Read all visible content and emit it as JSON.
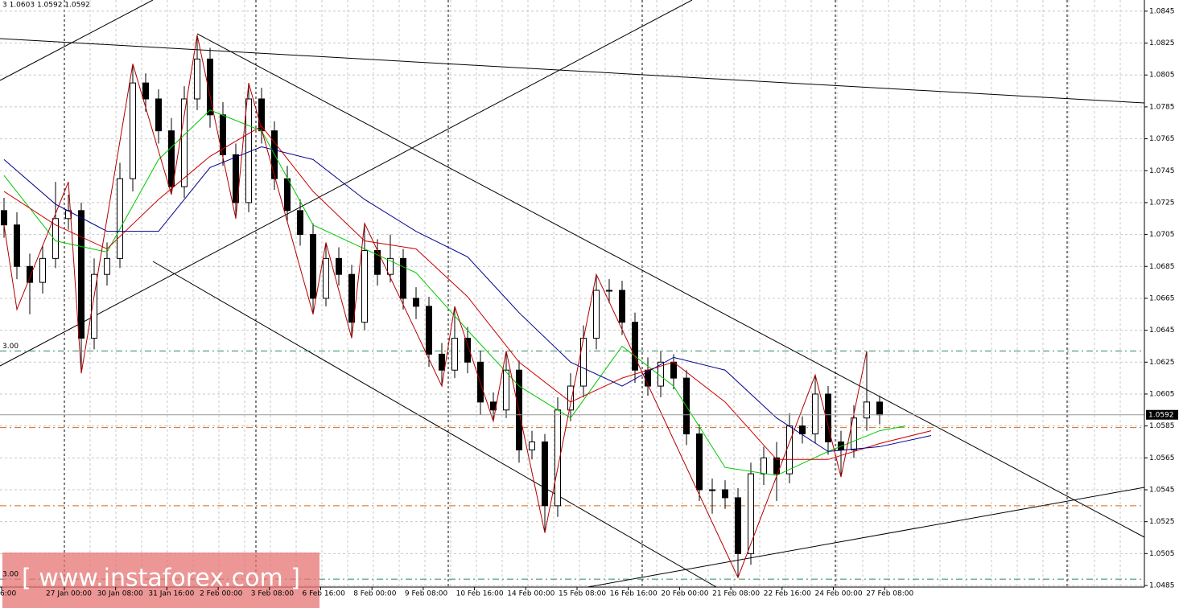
{
  "chart_data": {
    "type": "candlestick",
    "header": "3 1.0603 1.0592 1.0592",
    "watermark": "[ www.instaforex.com ]",
    "ylim": [
      1.0484,
      1.0852
    ],
    "yticks": [
      1.0845,
      1.0825,
      1.0805,
      1.0785,
      1.0765,
      1.0745,
      1.0725,
      1.0705,
      1.0685,
      1.0665,
      1.0645,
      1.0625,
      1.0605,
      1.0585,
      1.0565,
      1.0545,
      1.0525,
      1.0505,
      1.0485
    ],
    "grid": true,
    "x_labels": [
      "6:00",
      "27 Jan 00:00",
      "30 Jan 08:00",
      "31 Jan 16:00",
      "2 Feb 00:00",
      "3 Feb 08:00",
      "6 Feb 16:00",
      "8 Feb 00:00",
      "9 Feb 08:00",
      "10 Feb 16:00",
      "14 Feb 00:00",
      "15 Feb 08:00",
      "16 Feb 16:00",
      "20 Feb 00:00",
      "21 Feb 08:00",
      "22 Feb 16:00",
      "24 Feb 00:00",
      "27 Feb 08:00"
    ],
    "open": [
      1.072,
      1.0711,
      1.0685,
      1.0675,
      1.069,
      1.0715,
      1.072,
      1.064,
      1.068,
      1.069,
      1.074,
      1.08,
      1.079,
      1.077,
      1.0735,
      1.079,
      1.0815,
      1.078,
      1.0755,
      1.0725,
      1.079,
      1.077,
      1.074,
      1.072,
      1.0705,
      1.0665,
      1.069,
      1.068,
      1.065,
      1.0695,
      1.068,
      1.069,
      1.0665,
      1.066,
      1.063,
      1.062,
      1.064,
      1.0625,
      1.06,
      1.0595,
      1.062,
      1.057,
      1.0575,
      1.0535,
      1.0595,
      1.061,
      1.064,
      1.067,
      1.067,
      1.065,
      1.062,
      1.061,
      1.0625,
      1.0615,
      1.058,
      1.0545,
      1.0545,
      1.054,
      1.0505,
      1.0555,
      1.0565,
      1.0555,
      1.0585,
      1.058,
      1.0605,
      1.0575,
      1.057,
      1.059,
      1.06
    ],
    "high": [
      1.0728,
      1.0719,
      1.0693,
      1.0698,
      1.0738,
      1.073,
      1.0725,
      1.069,
      1.07,
      1.075,
      1.0812,
      1.0806,
      1.0796,
      1.0778,
      1.0798,
      1.083,
      1.0822,
      1.0788,
      1.0762,
      1.08,
      1.0797,
      1.0776,
      1.0748,
      1.0727,
      1.0712,
      1.07,
      1.0697,
      1.0686,
      1.0712,
      1.0702,
      1.0705,
      1.0696,
      1.0672,
      1.0666,
      1.0637,
      1.066,
      1.0647,
      1.0632,
      1.0606,
      1.0632,
      1.0626,
      1.0582,
      1.058,
      1.0603,
      1.0618,
      1.0648,
      1.068,
      1.0677,
      1.0676,
      1.0656,
      1.0628,
      1.0632,
      1.063,
      1.062,
      1.0586,
      1.0552,
      1.0551,
      1.0546,
      1.0562,
      1.0572,
      1.0575,
      1.0593,
      1.0591,
      1.0617,
      1.061,
      1.0582,
      1.0598,
      1.0632,
      1.0604
    ],
    "low": [
      1.0703,
      1.0677,
      1.0655,
      1.0668,
      1.0684,
      1.0708,
      1.0618,
      1.0633,
      1.0673,
      1.0684,
      1.0732,
      1.0782,
      1.0762,
      1.073,
      1.0728,
      1.0783,
      1.0772,
      1.0748,
      1.0715,
      1.0719,
      1.0762,
      1.0733,
      1.0713,
      1.0698,
      1.0655,
      1.066,
      1.0673,
      1.064,
      1.0645,
      1.0673,
      1.0675,
      1.0658,
      1.0652,
      1.0622,
      1.061,
      1.0615,
      1.0618,
      1.0592,
      1.0588,
      1.059,
      1.0562,
      1.0564,
      1.0518,
      1.0528,
      1.0588,
      1.0603,
      1.0633,
      1.0662,
      1.0642,
      1.0612,
      1.0604,
      1.0603,
      1.0608,
      1.0573,
      1.0538,
      1.053,
      1.0533,
      1.049,
      1.0498,
      1.0548,
      1.0538,
      1.0549,
      1.0574,
      1.0574,
      1.0567,
      1.0553,
      1.0565,
      1.0582,
      1.0586
    ],
    "close": [
      1.0711,
      1.0685,
      1.0675,
      1.069,
      1.0715,
      1.072,
      1.064,
      1.068,
      1.069,
      1.074,
      1.08,
      1.079,
      1.077,
      1.0735,
      1.079,
      1.0815,
      1.078,
      1.0755,
      1.0725,
      1.079,
      1.077,
      1.074,
      1.072,
      1.0705,
      1.0665,
      1.069,
      1.068,
      1.065,
      1.0695,
      1.068,
      1.069,
      1.0665,
      1.066,
      1.063,
      1.062,
      1.064,
      1.0625,
      1.06,
      1.0595,
      1.062,
      1.057,
      1.0575,
      1.0535,
      1.0595,
      1.061,
      1.064,
      1.067,
      1.067,
      1.065,
      1.062,
      1.061,
      1.0625,
      1.0615,
      1.058,
      1.0545,
      1.0545,
      1.054,
      1.0505,
      1.0555,
      1.0565,
      1.0555,
      1.0585,
      1.058,
      1.0605,
      1.0575,
      1.057,
      1.059,
      1.06,
      1.0592
    ],
    "lines": [
      {
        "color": "#00c800",
        "x": [
          0,
          4,
          8,
          12,
          16,
          20,
          24,
          28,
          32,
          36,
          40,
          44,
          48,
          52,
          56,
          60,
          64,
          68,
          70
        ],
        "values": [
          1.0742,
          1.0701,
          1.0694,
          1.0752,
          1.0783,
          1.077,
          1.0711,
          1.0696,
          1.0681,
          1.0645,
          1.061,
          1.059,
          1.0635,
          1.061,
          1.0559,
          1.0554,
          1.0569,
          1.0582,
          1.0585
        ]
      },
      {
        "color": "#cc0000",
        "x": [
          0,
          4,
          8,
          12,
          16,
          20,
          24,
          28,
          32,
          36,
          40,
          44,
          48,
          52,
          56,
          60,
          64,
          68,
          72
        ],
        "values": [
          1.0732,
          1.0711,
          1.0696,
          1.0727,
          1.0754,
          1.0773,
          1.0732,
          1.0701,
          1.0696,
          1.0666,
          1.0625,
          1.06,
          1.0615,
          1.0625,
          1.06,
          1.0564,
          1.0564,
          1.0574,
          1.0582
        ]
      },
      {
        "color": "#00008b",
        "x": [
          0,
          4,
          8,
          12,
          16,
          20,
          24,
          28,
          32,
          36,
          40,
          44,
          48,
          52,
          56,
          60,
          64,
          68,
          72
        ],
        "values": [
          1.0752,
          1.0724,
          1.0707,
          1.0707,
          1.0747,
          1.076,
          1.0752,
          1.0727,
          1.0707,
          1.0691,
          1.0656,
          1.0625,
          1.061,
          1.0628,
          1.062,
          1.059,
          1.0569,
          1.0572,
          1.0579
        ]
      },
      {
        "color": "#b00000",
        "x": [
          0,
          1,
          5,
          6,
          10,
          13,
          15,
          18,
          19,
          24,
          25,
          27,
          28,
          34,
          35,
          38,
          39,
          42,
          46,
          57,
          63,
          65,
          67
        ],
        "values": [
          1.0711,
          1.0658,
          1.0738,
          1.0618,
          1.0812,
          1.073,
          1.083,
          1.0715,
          1.08,
          1.0655,
          1.07,
          1.064,
          1.0712,
          1.061,
          1.066,
          1.0588,
          1.0632,
          1.0518,
          1.068,
          1.049,
          1.0617,
          1.0553,
          1.0632
        ]
      }
    ],
    "levels": [
      {
        "value": 1.0632,
        "color": "#2e8b57",
        "label": "3.00"
      },
      {
        "value": 1.0584,
        "color": "#d2691e"
      },
      {
        "value": 1.0535,
        "color": "#d2691e"
      },
      {
        "value": 1.0489,
        "color": "#2e8b57",
        "label": "3.00"
      }
    ],
    "last": 1.0592
  }
}
